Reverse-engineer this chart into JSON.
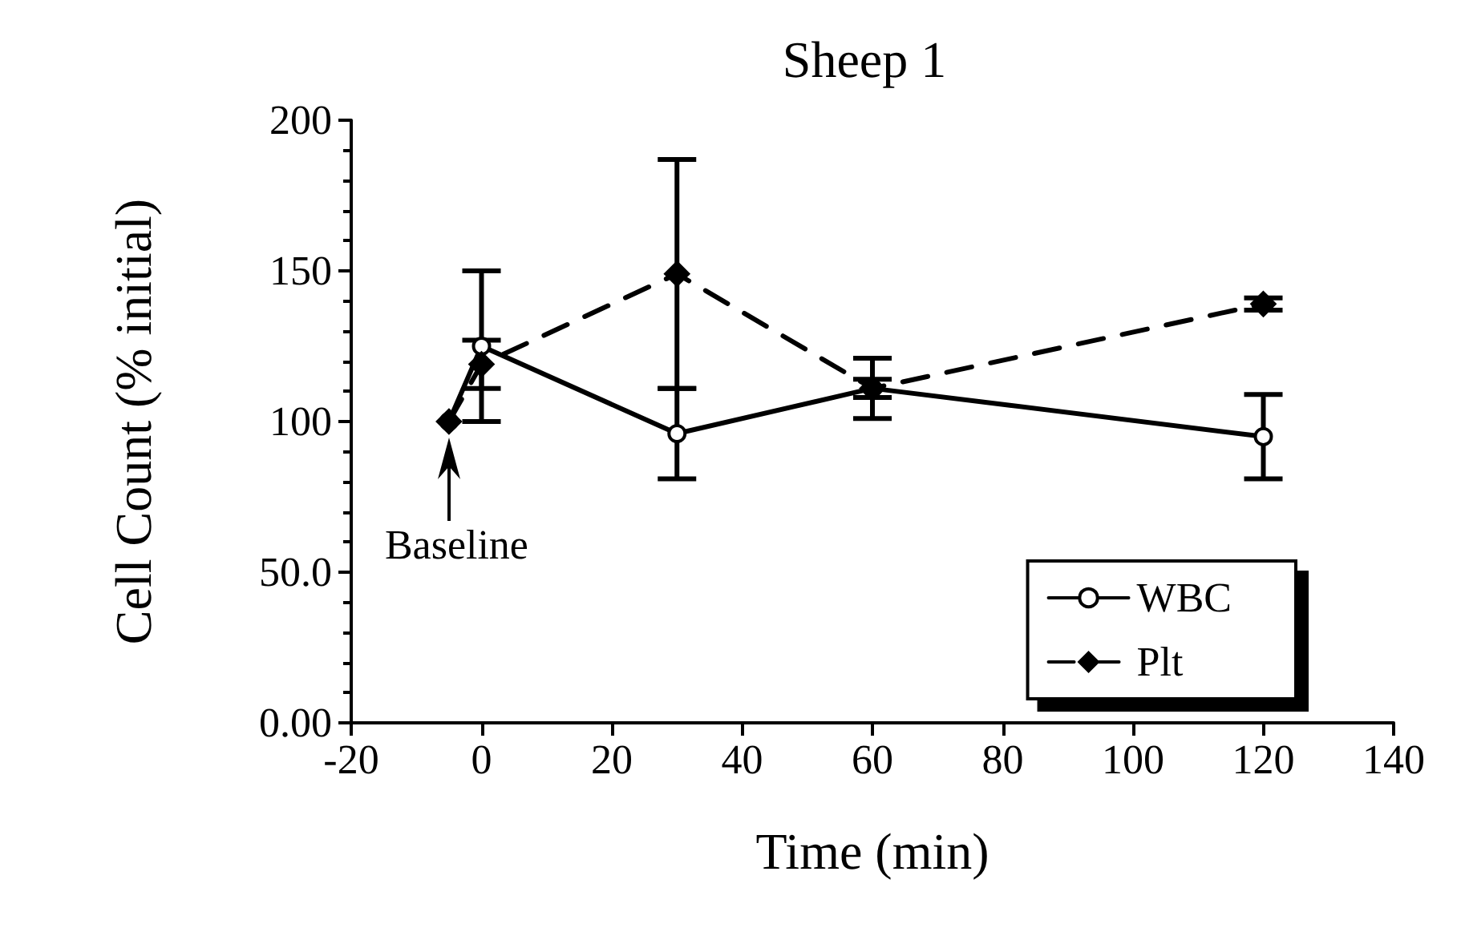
{
  "chart_data": {
    "type": "line",
    "title": "Sheep 1",
    "xlabel": "Time (min)",
    "ylabel": "Cell Count (% initial)",
    "xlim": [
      -20,
      140
    ],
    "xticks": [
      -20,
      0,
      20,
      40,
      60,
      80,
      100,
      120,
      140
    ],
    "ylim": [
      0,
      200
    ],
    "yticks": [
      {
        "value": 0,
        "label": "0.00"
      },
      {
        "value": 50,
        "label": "50.0"
      },
      100,
      150,
      200
    ],
    "series": [
      {
        "name": "WBC",
        "color": "#000000",
        "x": [
          -5,
          0,
          30,
          60,
          120
        ],
        "values": [
          100,
          125,
          96,
          111,
          95
        ],
        "errors": [
          null,
          25,
          15,
          10,
          14
        ],
        "marker": "circle",
        "line_style": "solid"
      },
      {
        "name": "Plt",
        "color": "#000000",
        "x": [
          -5,
          0,
          30,
          60,
          120
        ],
        "values": [
          100,
          119,
          149,
          111,
          139
        ],
        "errors": [
          null,
          8,
          38,
          3,
          2
        ],
        "marker": "diamond",
        "line_style": "dashed"
      }
    ],
    "annotations": [
      {
        "text": "Baseline",
        "x": -5,
        "y": 100
      }
    ],
    "legend": "bottom right",
    "grid": false
  }
}
